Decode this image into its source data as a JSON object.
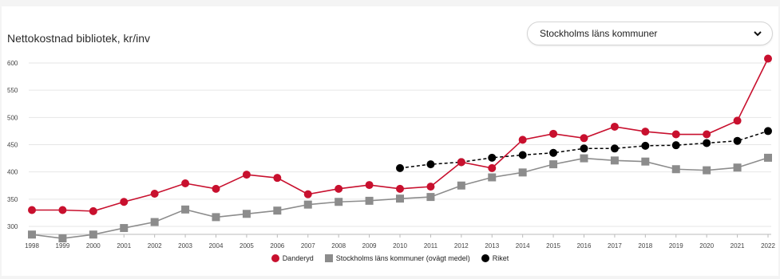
{
  "dropdown": {
    "label": "Stockholms läns kommuner"
  },
  "chart_data": {
    "type": "line",
    "title": "Nettokostnad bibliotek, kr/inv",
    "x": [
      "1998",
      "1999",
      "2000",
      "2001",
      "2002",
      "2003",
      "2004",
      "2005",
      "2006",
      "2007",
      "2008",
      "2009",
      "2010",
      "2011",
      "2012",
      "2013",
      "2014",
      "2015",
      "2016",
      "2017",
      "2018",
      "2019",
      "2020",
      "2021",
      "2022"
    ],
    "ylim": [
      290,
      620
    ],
    "yticks": [
      300,
      350,
      400,
      450,
      500,
      550,
      600
    ],
    "grid": true,
    "legend_position": "bottom",
    "series": [
      {
        "name": "Danderyd",
        "color": "#c8102e",
        "marker": "circle",
        "line": "solid",
        "values": [
          330,
          330,
          328,
          345,
          360,
          379,
          369,
          395,
          389,
          359,
          369,
          376,
          369,
          373,
          418,
          407,
          459,
          470,
          462,
          483,
          474,
          469,
          469,
          494,
          608
        ]
      },
      {
        "name": "Stockholms läns kommuner (ovägt medel)",
        "color": "#8c8c8c",
        "marker": "square",
        "line": "solid",
        "values": [
          285,
          278,
          285,
          297,
          308,
          331,
          317,
          323,
          329,
          340,
          345,
          347,
          351,
          354,
          375,
          390,
          399,
          414,
          425,
          421,
          419,
          405,
          403,
          408,
          426
        ]
      },
      {
        "name": "Riket",
        "color": "#000000",
        "marker": "circle",
        "line": "dashed",
        "values": [
          null,
          null,
          null,
          null,
          null,
          null,
          null,
          null,
          null,
          null,
          null,
          null,
          407,
          414,
          418,
          426,
          431,
          435,
          443,
          443,
          448,
          449,
          453,
          457,
          475
        ]
      }
    ]
  }
}
